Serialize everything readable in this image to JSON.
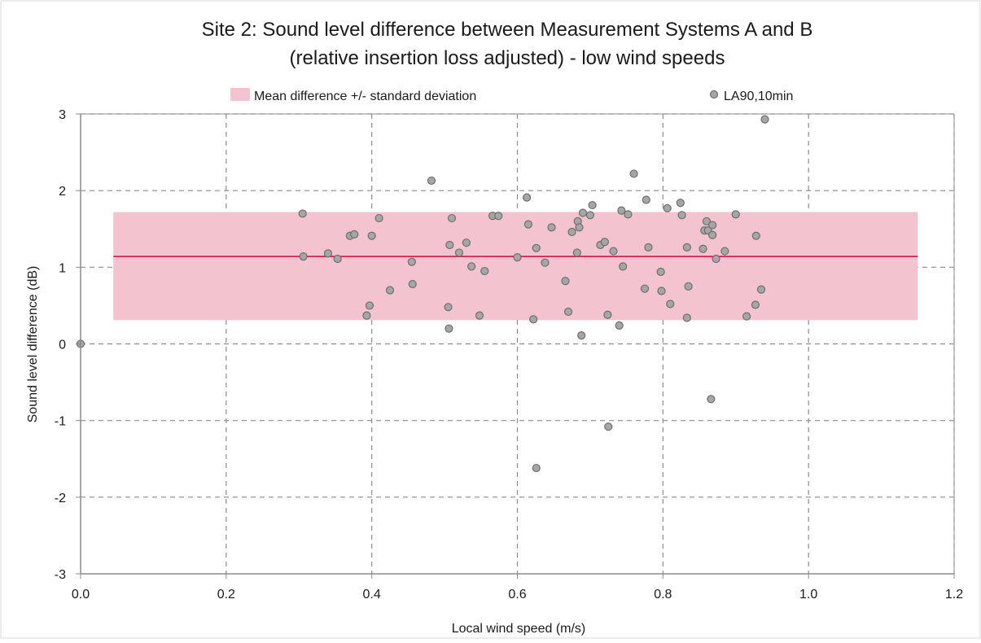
{
  "colors": {
    "band_fill": "#f3c3cf",
    "mean_line": "#d6204f",
    "point_fill": "#a6a6a6",
    "point_stroke": "#6e6e6e",
    "grid": "#8c8c8c",
    "plot_border": "#8c8c8c"
  },
  "chart_data": {
    "type": "scatter",
    "title_lines": [
      "Site 2: Sound level difference between Measurement Systems A and B",
      "(relative insertion loss adjusted) - low wind speeds"
    ],
    "xlabel": "Local wind speed (m/s)",
    "ylabel": "Sound level difference (dB)",
    "xlim": [
      0,
      1.2
    ],
    "ylim": [
      -3,
      3
    ],
    "x_ticks": [
      "0.0",
      "0.2",
      "0.4",
      "0.6",
      "0.8",
      "1.0",
      "1.2"
    ],
    "y_ticks": [
      "3",
      "2",
      "1",
      "0",
      "-1",
      "-2",
      "-3"
    ],
    "grid": true,
    "legend_position": "top",
    "legend": [
      {
        "label": "Mean difference +/- standard deviation",
        "marker": "band-icon"
      },
      {
        "label": "LA90,10min",
        "marker": "circle-marker-icon"
      }
    ],
    "band": {
      "x_start": 0.045,
      "x_end": 1.15,
      "mean": 1.14,
      "lower": 0.31,
      "upper": 1.72
    },
    "series": [
      {
        "name": "LA90,10min",
        "points": [
          [
            0.0,
            0.0
          ],
          [
            0.305,
            1.7
          ],
          [
            0.306,
            1.14
          ],
          [
            0.34,
            1.18
          ],
          [
            0.353,
            1.11
          ],
          [
            0.37,
            1.41
          ],
          [
            0.376,
            1.43
          ],
          [
            0.393,
            0.37
          ],
          [
            0.397,
            0.5
          ],
          [
            0.4,
            1.41
          ],
          [
            0.41,
            1.64
          ],
          [
            0.425,
            0.7
          ],
          [
            0.455,
            1.07
          ],
          [
            0.456,
            0.78
          ],
          [
            0.482,
            2.13
          ],
          [
            0.505,
            0.48
          ],
          [
            0.506,
            0.2
          ],
          [
            0.507,
            1.29
          ],
          [
            0.51,
            1.64
          ],
          [
            0.52,
            1.19
          ],
          [
            0.53,
            1.32
          ],
          [
            0.537,
            1.01
          ],
          [
            0.548,
            0.37
          ],
          [
            0.555,
            0.95
          ],
          [
            0.566,
            1.67
          ],
          [
            0.574,
            1.67
          ],
          [
            0.6,
            1.13
          ],
          [
            0.613,
            1.91
          ],
          [
            0.615,
            1.56
          ],
          [
            0.622,
            0.32
          ],
          [
            0.626,
            1.25
          ],
          [
            0.626,
            -1.62
          ],
          [
            0.638,
            1.06
          ],
          [
            0.647,
            1.52
          ],
          [
            0.666,
            0.82
          ],
          [
            0.67,
            0.42
          ],
          [
            0.675,
            1.46
          ],
          [
            0.682,
            1.19
          ],
          [
            0.683,
            1.6
          ],
          [
            0.685,
            1.52
          ],
          [
            0.688,
            0.11
          ],
          [
            0.69,
            1.71
          ],
          [
            0.7,
            1.68
          ],
          [
            0.703,
            1.81
          ],
          [
            0.714,
            1.29
          ],
          [
            0.72,
            1.33
          ],
          [
            0.724,
            0.38
          ],
          [
            0.725,
            -1.08
          ],
          [
            0.732,
            1.21
          ],
          [
            0.74,
            0.24
          ],
          [
            0.743,
            1.74
          ],
          [
            0.745,
            1.01
          ],
          [
            0.752,
            1.69
          ],
          [
            0.76,
            2.22
          ],
          [
            0.775,
            0.72
          ],
          [
            0.777,
            1.88
          ],
          [
            0.78,
            1.26
          ],
          [
            0.797,
            0.94
          ],
          [
            0.798,
            0.69
          ],
          [
            0.806,
            1.77
          ],
          [
            0.81,
            0.52
          ],
          [
            0.824,
            1.84
          ],
          [
            0.826,
            1.68
          ],
          [
            0.833,
            1.26
          ],
          [
            0.833,
            0.34
          ],
          [
            0.835,
            0.75
          ],
          [
            0.855,
            1.24
          ],
          [
            0.857,
            1.48
          ],
          [
            0.86,
            1.6
          ],
          [
            0.862,
            1.48
          ],
          [
            0.866,
            -0.72
          ],
          [
            0.868,
            1.42
          ],
          [
            0.868,
            1.55
          ],
          [
            0.873,
            1.11
          ],
          [
            0.885,
            1.21
          ],
          [
            0.9,
            1.69
          ],
          [
            0.915,
            0.36
          ],
          [
            0.927,
            0.51
          ],
          [
            0.928,
            1.41
          ],
          [
            0.935,
            0.71
          ],
          [
            0.94,
            2.93
          ]
        ]
      }
    ]
  }
}
